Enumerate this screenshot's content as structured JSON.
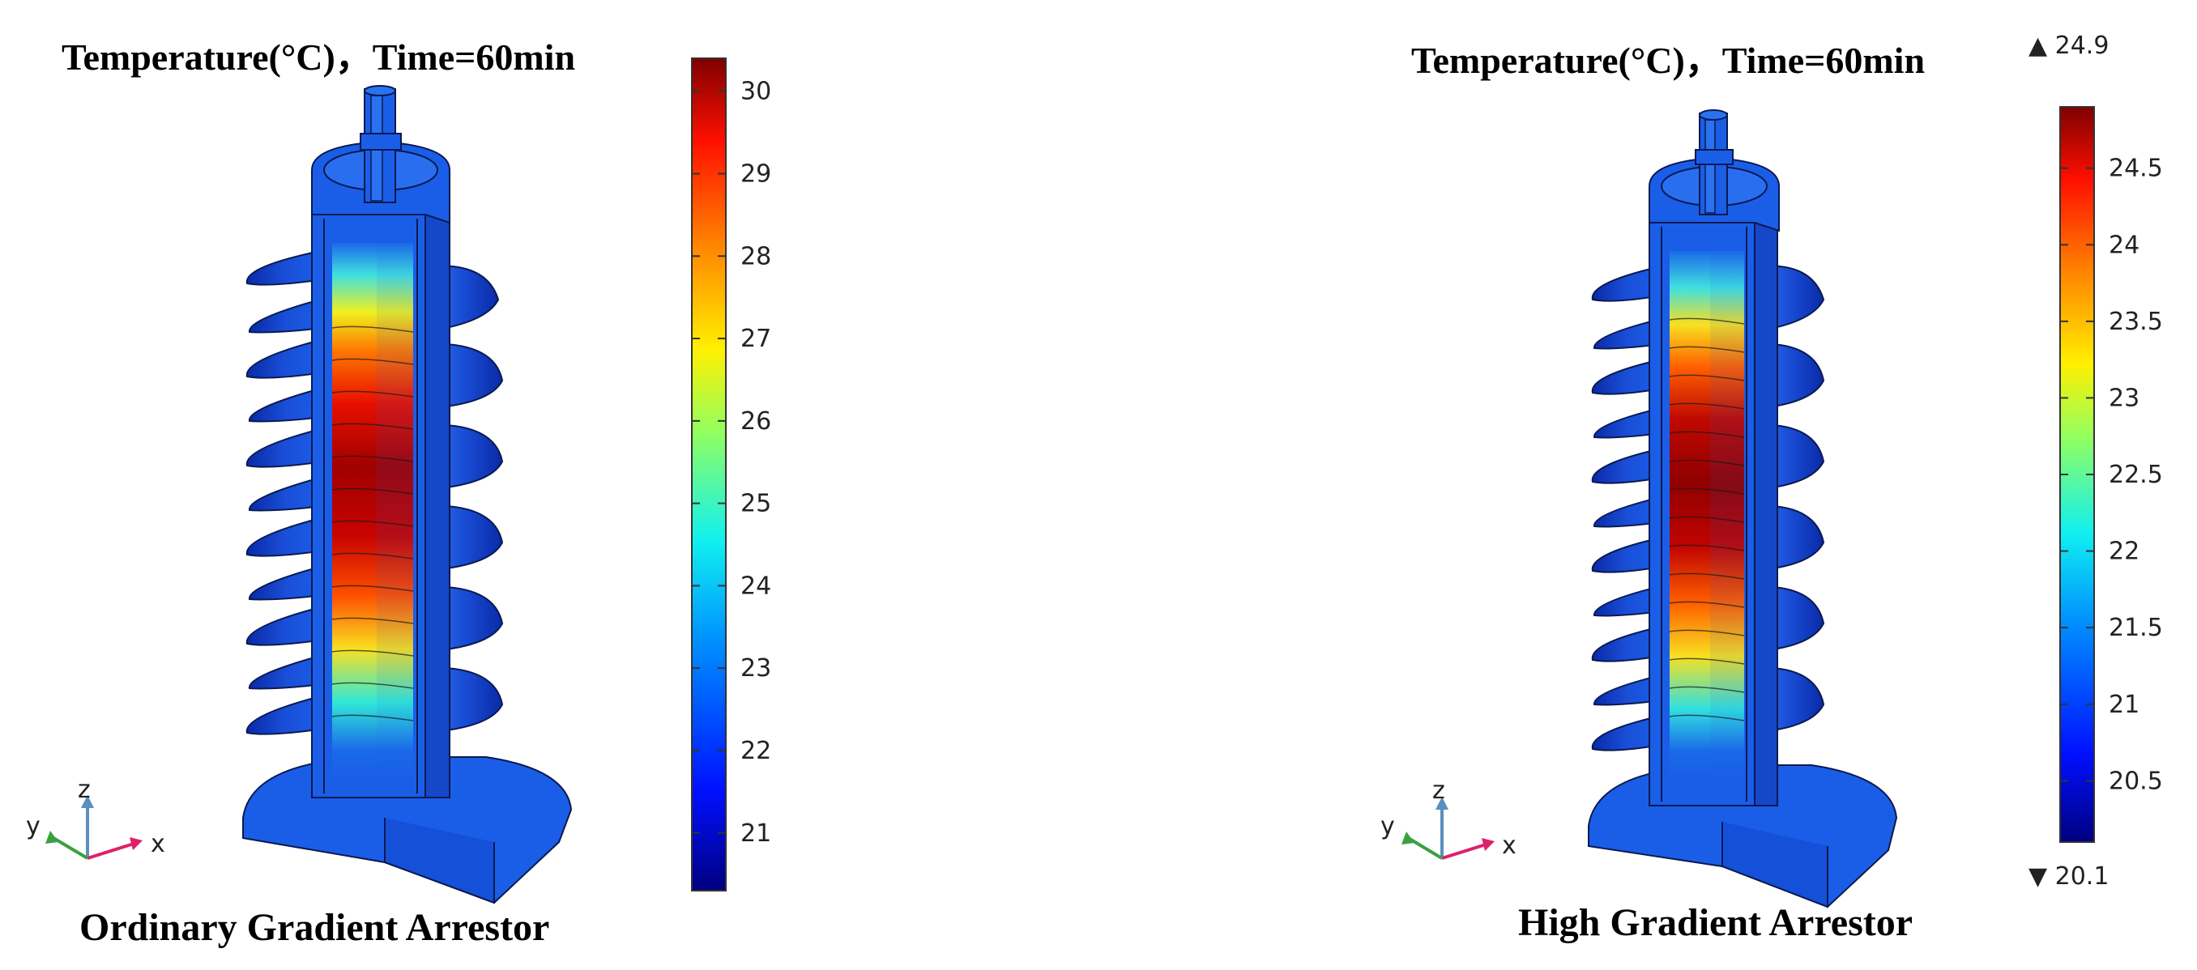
{
  "panels": [
    {
      "title": "Temperature(°C)，Time=60min",
      "caption": "Ordinary Gradient Arrestor",
      "colorbar": {
        "min": 20.3,
        "max": 30.4,
        "ticks": [
          "21",
          "22",
          "23",
          "24",
          "25",
          "26",
          "27",
          "28",
          "29",
          "30"
        ],
        "max_marker": "",
        "min_marker": ""
      },
      "axes_triad": {
        "z": "z",
        "y": "y",
        "x": "x"
      }
    },
    {
      "title": "Temperature(°C)，Time=60min",
      "caption": "High Gradient Arrestor",
      "colorbar": {
        "min": 20.1,
        "max": 24.9,
        "ticks": [
          "20.5",
          "21",
          "21.5",
          "22",
          "22.5",
          "23",
          "23.5",
          "24",
          "24.5"
        ],
        "max_marker": "▲ 24.9",
        "min_marker": "▼ 20.1"
      },
      "axes_triad": {
        "z": "z",
        "y": "y",
        "x": "x"
      }
    }
  ],
  "colors": {
    "body_blue": "#1a5ee8",
    "dark_blue": "#0b2fb8",
    "outline": "#0a1a50"
  }
}
